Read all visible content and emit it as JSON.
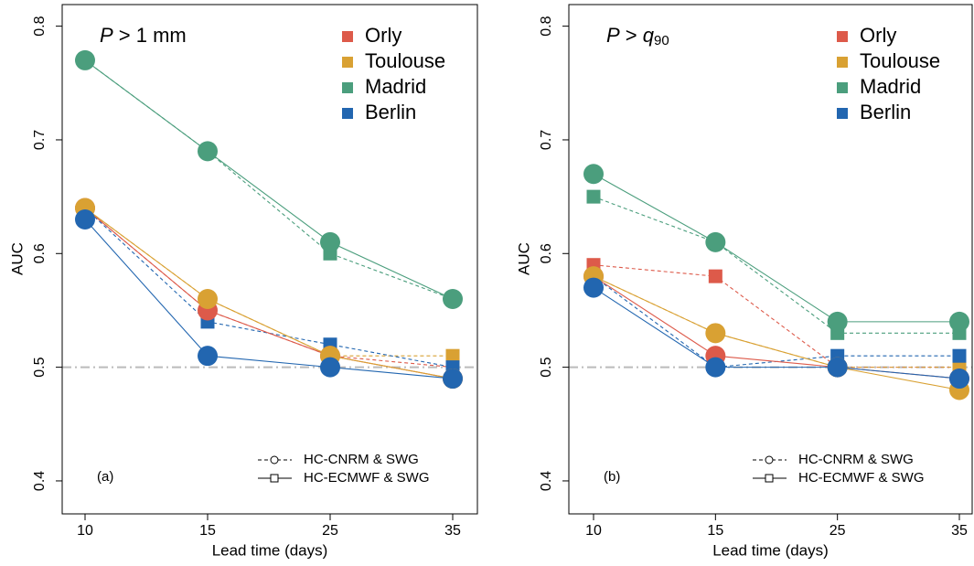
{
  "chart_data": [
    {
      "type": "line",
      "panel_label": "(a)",
      "annotation": [
        {
          "text": "P",
          "italic": true
        },
        {
          "text": " > 1 mm"
        }
      ],
      "x_label": "Lead time (days)",
      "y_label": "AUC",
      "categories": [
        "10",
        "15",
        "25",
        "35"
      ],
      "ylim": [
        0.371,
        0.819
      ],
      "yticks": [
        0.4,
        0.5,
        0.6,
        0.7,
        0.8
      ],
      "reference_line": 0.5,
      "legend": "top-right",
      "methods": [
        {
          "name": "HC-CNRM & SWG",
          "dashed": true,
          "marker": "square"
        },
        {
          "name": "HC-ECMWF & SWG",
          "dashed": false,
          "marker": "circle"
        }
      ],
      "series": [
        {
          "name": "Orly",
          "color": "#dd5a4a",
          "values": [
            [
              0.64,
              0.55,
              0.51,
              0.5
            ],
            [
              0.64,
              0.55,
              0.51,
              0.49
            ]
          ]
        },
        {
          "name": "Toulouse",
          "color": "#d9a133",
          "values": [
            [
              0.64,
              0.56,
              0.51,
              0.51
            ],
            [
              0.64,
              0.56,
              0.51,
              0.49
            ]
          ]
        },
        {
          "name": "Madrid",
          "color": "#4b9e7d",
          "values": [
            [
              0.77,
              0.69,
              0.6,
              0.56
            ],
            [
              0.77,
              0.69,
              0.61,
              0.56
            ]
          ]
        },
        {
          "name": "Berlin",
          "color": "#2266b0",
          "values": [
            [
              0.64,
              0.54,
              0.52,
              0.5
            ],
            [
              0.63,
              0.51,
              0.5,
              0.49
            ]
          ]
        }
      ]
    },
    {
      "type": "line",
      "panel_label": "(b)",
      "annotation": [
        {
          "text": "P",
          "italic": true
        },
        {
          "text": " > "
        },
        {
          "text": "q",
          "italic": true
        },
        {
          "text": "90",
          "sub": true
        }
      ],
      "x_label": "Lead time (days)",
      "y_label": "AUC",
      "categories": [
        "10",
        "15",
        "25",
        "35"
      ],
      "ylim": [
        0.371,
        0.819
      ],
      "yticks": [
        0.4,
        0.5,
        0.6,
        0.7,
        0.8
      ],
      "reference_line": 0.5,
      "legend": "top-right",
      "methods": [
        {
          "name": "HC-CNRM & SWG",
          "dashed": true,
          "marker": "square"
        },
        {
          "name": "HC-ECMWF & SWG",
          "dashed": false,
          "marker": "circle"
        }
      ],
      "series": [
        {
          "name": "Orly",
          "color": "#dd5a4a",
          "values": [
            [
              0.59,
              0.58,
              0.5,
              0.5
            ],
            [
              0.58,
              0.51,
              0.5,
              0.49
            ]
          ]
        },
        {
          "name": "Toulouse",
          "color": "#d9a133",
          "values": [
            [
              0.58,
              0.53,
              0.5,
              0.5
            ],
            [
              0.58,
              0.53,
              0.5,
              0.48
            ]
          ]
        },
        {
          "name": "Madrid",
          "color": "#4b9e7d",
          "values": [
            [
              0.65,
              0.61,
              0.53,
              0.53
            ],
            [
              0.67,
              0.61,
              0.54,
              0.54
            ]
          ]
        },
        {
          "name": "Berlin",
          "color": "#2266b0",
          "values": [
            [
              0.58,
              0.5,
              0.51,
              0.51
            ],
            [
              0.57,
              0.5,
              0.5,
              0.49
            ]
          ]
        }
      ]
    }
  ]
}
